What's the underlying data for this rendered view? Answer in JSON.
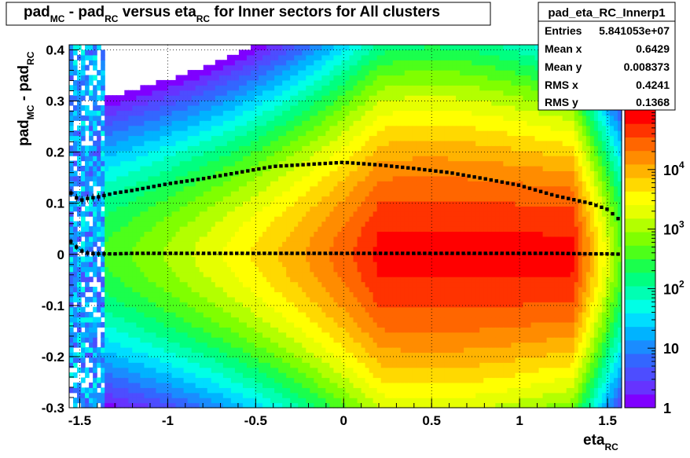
{
  "chart_data": {
    "type": "heatmap",
    "title": {
      "parts": [
        {
          "text": "pad",
          "sub": "MC"
        },
        {
          "text": " - pad",
          "sub": "RC"
        },
        {
          "text": " versus eta",
          "sub": "RC"
        },
        {
          "text": " for Inner sectors for All clusters",
          "sub": ""
        }
      ]
    },
    "xlabel": {
      "text": "eta",
      "sub": "RC"
    },
    "ylabel": {
      "parts": [
        {
          "text": "pad",
          "sub": "MC"
        },
        {
          "text": " - pad",
          "sub": "RC"
        }
      ]
    },
    "xlim": [
      -1.56,
      1.58
    ],
    "ylim": [
      -0.3,
      0.41
    ],
    "x_ticks": [
      {
        "value": -1.5,
        "label": "-1.5"
      },
      {
        "value": -1.0,
        "label": "-1"
      },
      {
        "value": -0.5,
        "label": "-0.5"
      },
      {
        "value": 0.0,
        "label": "0"
      },
      {
        "value": 0.5,
        "label": "0.5"
      },
      {
        "value": 1.0,
        "label": "1"
      },
      {
        "value": 1.5,
        "label": "1.5"
      }
    ],
    "y_ticks": [
      {
        "value": -0.3,
        "label": "-0.3"
      },
      {
        "value": -0.2,
        "label": "-0.2"
      },
      {
        "value": -0.1,
        "label": "-0.1"
      },
      {
        "value": 0.0,
        "label": "0"
      },
      {
        "value": 0.1,
        "label": "0.1"
      },
      {
        "value": 0.2,
        "label": "0.2"
      },
      {
        "value": 0.3,
        "label": "0.3"
      },
      {
        "value": 0.4,
        "label": "0.4"
      }
    ],
    "grid": true,
    "z_scale": "log",
    "z_range": [
      1,
      100000
    ],
    "z_ticks": [
      {
        "value": 1,
        "label": "1",
        "exp": ""
      },
      {
        "value": 10,
        "label": "10",
        "exp": ""
      },
      {
        "value": 100,
        "label": "10",
        "exp": "2"
      },
      {
        "value": 1000,
        "label": "10",
        "exp": "3"
      },
      {
        "value": 10000,
        "label": "10",
        "exp": "4"
      }
    ],
    "palette": [
      "#7f00ff",
      "#6633ff",
      "#4d4dff",
      "#3366ff",
      "#1a8cff",
      "#00b3ff",
      "#00ddff",
      "#00ffe6",
      "#00ffb3",
      "#00ff80",
      "#1aff4d",
      "#4dff1a",
      "#80ff00",
      "#b3ff00",
      "#e6ff00",
      "#ffff00",
      "#ffd900",
      "#ffb300",
      "#ff8c00",
      "#ff6600",
      "#ff3300",
      "#ff0000"
    ],
    "mean_profile": {
      "x": [
        -1.55,
        -1.5,
        -1.45,
        -1.4,
        -1.3,
        -1.2,
        -1.0,
        -0.8,
        -0.6,
        -0.4,
        -0.2,
        0.0,
        0.2,
        0.4,
        0.6,
        0.8,
        1.0,
        1.2,
        1.4,
        1.5,
        1.56
      ],
      "y": [
        0.025,
        0.008,
        0.002,
        0.001,
        0.001,
        0.002,
        0.002,
        0.002,
        0.002,
        0.002,
        0.002,
        0.002,
        0.002,
        0.002,
        0.002,
        0.002,
        0.002,
        0.002,
        0.001,
        0.001,
        0.0005
      ]
    },
    "rms_profile": {
      "x": [
        -1.55,
        -1.5,
        -1.45,
        -1.4,
        -1.3,
        -1.2,
        -1.0,
        -0.8,
        -0.6,
        -0.4,
        -0.3,
        -0.1,
        0.0,
        0.2,
        0.4,
        0.6,
        0.8,
        1.0,
        1.2,
        1.4,
        1.5,
        1.56
      ],
      "y": [
        0.12,
        0.105,
        0.11,
        0.112,
        0.12,
        0.125,
        0.138,
        0.148,
        0.16,
        0.172,
        0.174,
        0.178,
        0.18,
        0.175,
        0.168,
        0.16,
        0.148,
        0.135,
        0.115,
        0.1,
        0.088,
        0.07
      ]
    }
  },
  "stats_box": {
    "title": "pad_eta_RC_Innerp1",
    "rows": [
      {
        "label": "Entries",
        "value": "5.841053e+07"
      },
      {
        "label": "Mean x",
        "value": "0.6429"
      },
      {
        "label": "Mean y",
        "value": "0.008373"
      },
      {
        "label": "RMS x",
        "value": "0.4241"
      },
      {
        "label": "RMS y",
        "value": "0.1368"
      }
    ]
  }
}
